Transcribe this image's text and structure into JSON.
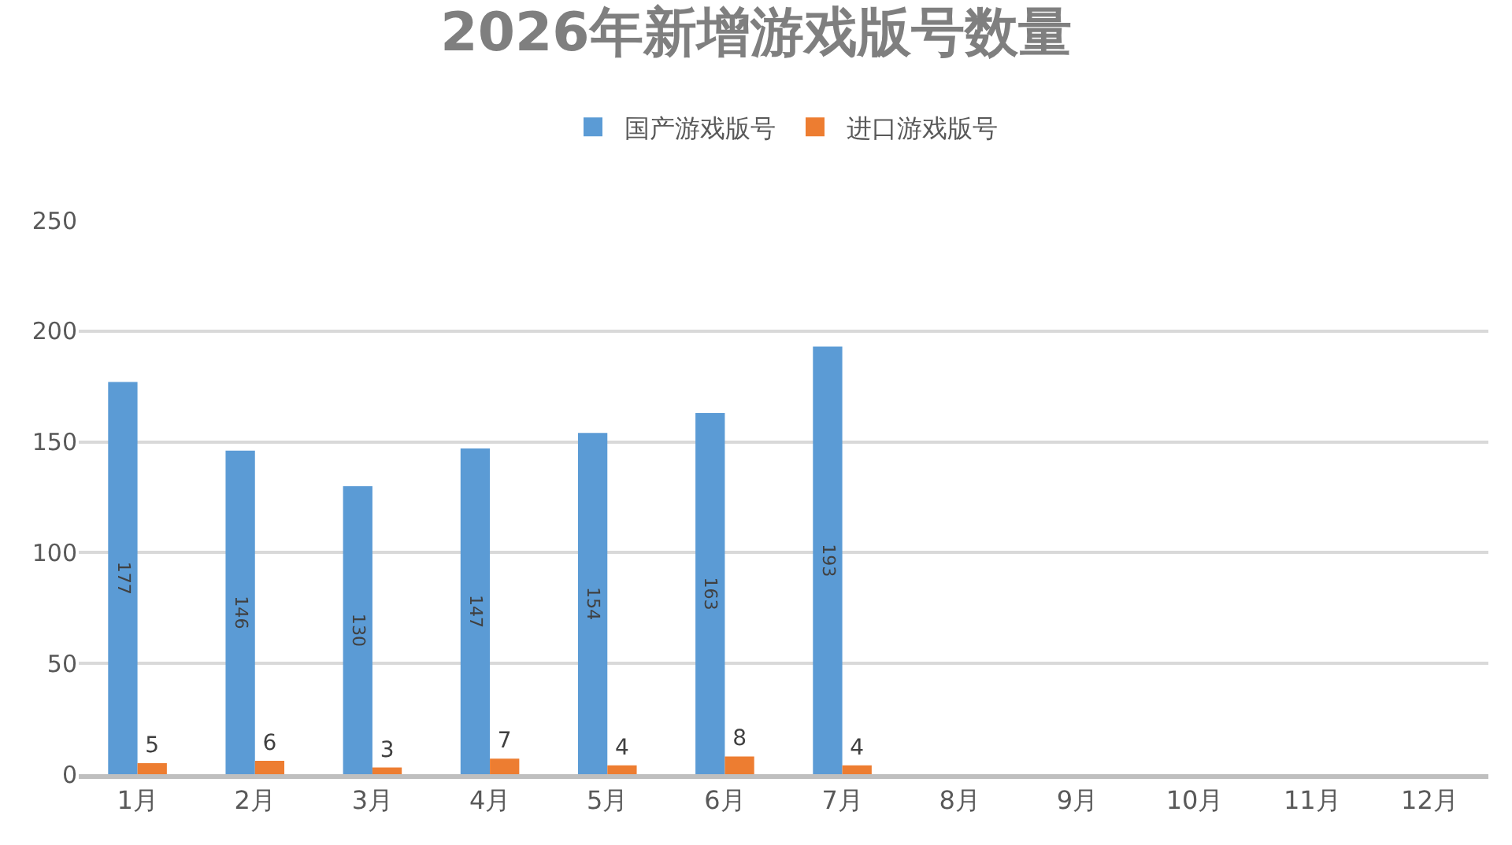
{
  "chart_data": {
    "type": "bar",
    "title": "2026年新增游戏版号数量",
    "categories": [
      "1月",
      "2月",
      "3月",
      "4月",
      "5月",
      "6月",
      "7月",
      "8月",
      "9月",
      "10月",
      "11月",
      "12月"
    ],
    "series": [
      {
        "name": "国产游戏版号",
        "color": "#5b9bd5",
        "values": [
          177,
          146,
          130,
          147,
          154,
          163,
          193,
          null,
          null,
          null,
          null,
          null
        ]
      },
      {
        "name": "进口游戏版号",
        "color": "#ed7d31",
        "values": [
          5,
          6,
          3,
          7,
          4,
          8,
          4,
          null,
          null,
          null,
          null,
          null
        ]
      }
    ],
    "ylim": [
      0,
      250
    ],
    "yticks": [
      0,
      50,
      100,
      150,
      200,
      250
    ],
    "grid": "y",
    "legend": "top",
    "data_labels": true
  }
}
